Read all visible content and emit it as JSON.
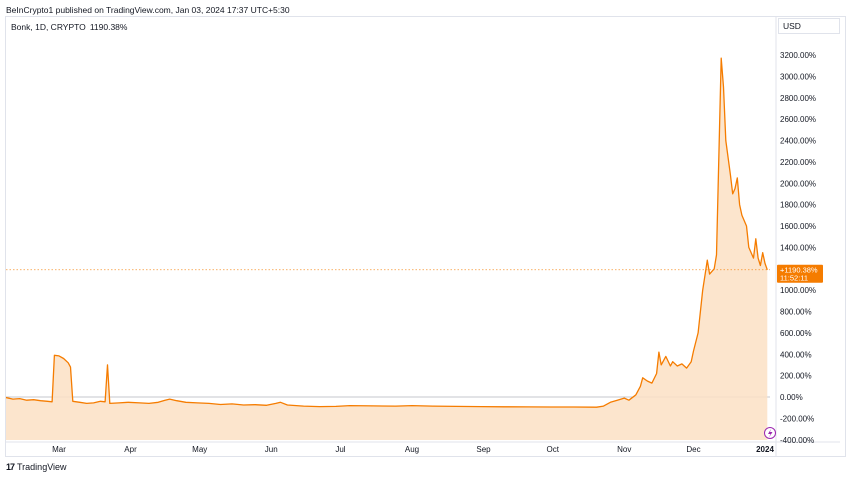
{
  "header": {
    "published": "BeInCrypto1 published on TradingView.com, Jan 03, 2024 17:37 UTC+5:30"
  },
  "legend": {
    "symbol": "Bonk, 1D, CRYPTO",
    "change": "1190.38%"
  },
  "price_scale": {
    "currency": "USD",
    "last_label": "+1190.38%",
    "countdown": "11:52:11"
  },
  "footer": {
    "brand": "TradingView",
    "logo_glyph": "17"
  },
  "colors": {
    "line": "#f57c00",
    "fill": "#fbe0c4",
    "label_bg": "#f57c00",
    "grid_zero": "#b2b5be"
  },
  "chart_data": {
    "type": "area",
    "title": "Bonk, 1D, CRYPTO",
    "ylabel": "",
    "y_unit": "%",
    "ylim": [
      -400,
      3400
    ],
    "y_ticks": [
      "-400.00%",
      "-200.00%",
      "0.00%",
      "200.00%",
      "400.00%",
      "600.00%",
      "800.00%",
      "1000.00%",
      "1200.00%",
      "1400.00%",
      "1600.00%",
      "1800.00%",
      "2000.00%",
      "2200.00%",
      "2400.00%",
      "2600.00%",
      "2800.00%",
      "3000.00%",
      "3200.00%"
    ],
    "x_ticks": [
      {
        "label": "Mar",
        "date": "2023-03-01"
      },
      {
        "label": "Apr",
        "date": "2023-04-01"
      },
      {
        "label": "May",
        "date": "2023-05-01"
      },
      {
        "label": "Jun",
        "date": "2023-06-01"
      },
      {
        "label": "Jul",
        "date": "2023-07-01"
      },
      {
        "label": "Aug",
        "date": "2023-08-01"
      },
      {
        "label": "Sep",
        "date": "2023-09-01"
      },
      {
        "label": "Oct",
        "date": "2023-10-01"
      },
      {
        "label": "Nov",
        "date": "2023-11-01"
      },
      {
        "label": "Dec",
        "date": "2023-12-01"
      },
      {
        "label": "2024",
        "date": "2024-01-01"
      }
    ],
    "last_value": 1190.38,
    "series": [
      {
        "points": [
          [
            "2023-02-03",
            0
          ],
          [
            "2023-02-06",
            -5
          ],
          [
            "2023-02-09",
            -20
          ],
          [
            "2023-02-12",
            -15
          ],
          [
            "2023-02-15",
            -30
          ],
          [
            "2023-02-18",
            -25
          ],
          [
            "2023-02-21",
            -35
          ],
          [
            "2023-02-24",
            -40
          ],
          [
            "2023-02-26",
            -45
          ],
          [
            "2023-02-27",
            390
          ],
          [
            "2023-03-01",
            385
          ],
          [
            "2023-03-03",
            360
          ],
          [
            "2023-03-05",
            320
          ],
          [
            "2023-03-06",
            280
          ],
          [
            "2023-03-07",
            -40
          ],
          [
            "2023-03-10",
            -50
          ],
          [
            "2023-03-13",
            -60
          ],
          [
            "2023-03-16",
            -55
          ],
          [
            "2023-03-19",
            -40
          ],
          [
            "2023-03-21",
            -45
          ],
          [
            "2023-03-22",
            300
          ],
          [
            "2023-03-23",
            -60
          ],
          [
            "2023-03-27",
            -55
          ],
          [
            "2023-03-31",
            -50
          ],
          [
            "2023-04-05",
            -55
          ],
          [
            "2023-04-09",
            -60
          ],
          [
            "2023-04-13",
            -50
          ],
          [
            "2023-04-16",
            -30
          ],
          [
            "2023-04-18",
            -20
          ],
          [
            "2023-04-21",
            -35
          ],
          [
            "2023-04-25",
            -50
          ],
          [
            "2023-04-30",
            -55
          ],
          [
            "2023-05-05",
            -60
          ],
          [
            "2023-05-10",
            -70
          ],
          [
            "2023-05-15",
            -65
          ],
          [
            "2023-05-20",
            -75
          ],
          [
            "2023-05-25",
            -72
          ],
          [
            "2023-05-30",
            -78
          ],
          [
            "2023-06-03",
            -60
          ],
          [
            "2023-06-05",
            -50
          ],
          [
            "2023-06-08",
            -75
          ],
          [
            "2023-06-15",
            -85
          ],
          [
            "2023-06-22",
            -90
          ],
          [
            "2023-06-29",
            -88
          ],
          [
            "2023-07-05",
            -80
          ],
          [
            "2023-07-15",
            -83
          ],
          [
            "2023-07-25",
            -85
          ],
          [
            "2023-08-01",
            -80
          ],
          [
            "2023-08-10",
            -85
          ],
          [
            "2023-08-20",
            -88
          ],
          [
            "2023-08-31",
            -90
          ],
          [
            "2023-09-10",
            -92
          ],
          [
            "2023-09-20",
            -93
          ],
          [
            "2023-09-30",
            -94
          ],
          [
            "2023-10-10",
            -94
          ],
          [
            "2023-10-20",
            -95
          ],
          [
            "2023-10-23",
            -85
          ],
          [
            "2023-10-26",
            -50
          ],
          [
            "2023-10-29",
            -30
          ],
          [
            "2023-11-01",
            -10
          ],
          [
            "2023-11-03",
            -30
          ],
          [
            "2023-11-06",
            20
          ],
          [
            "2023-11-08",
            100
          ],
          [
            "2023-11-09",
            180
          ],
          [
            "2023-11-11",
            150
          ],
          [
            "2023-11-13",
            130
          ],
          [
            "2023-11-15",
            220
          ],
          [
            "2023-11-16",
            420
          ],
          [
            "2023-11-17",
            300
          ],
          [
            "2023-11-19",
            380
          ],
          [
            "2023-11-21",
            290
          ],
          [
            "2023-11-22",
            330
          ],
          [
            "2023-11-24",
            290
          ],
          [
            "2023-11-26",
            310
          ],
          [
            "2023-11-28",
            270
          ],
          [
            "2023-11-30",
            330
          ],
          [
            "2023-12-01",
            430
          ],
          [
            "2023-12-03",
            600
          ],
          [
            "2023-12-05",
            1000
          ],
          [
            "2023-12-07",
            1280
          ],
          [
            "2023-12-08",
            1150
          ],
          [
            "2023-12-10",
            1200
          ],
          [
            "2023-12-11",
            1330
          ],
          [
            "2023-12-13",
            3170
          ],
          [
            "2023-12-14",
            2900
          ],
          [
            "2023-12-15",
            2400
          ],
          [
            "2023-12-17",
            2080
          ],
          [
            "2023-12-18",
            1900
          ],
          [
            "2023-12-19",
            1950
          ],
          [
            "2023-12-20",
            2050
          ],
          [
            "2023-12-21",
            1800
          ],
          [
            "2023-12-22",
            1700
          ],
          [
            "2023-12-24",
            1600
          ],
          [
            "2023-12-25",
            1400
          ],
          [
            "2023-12-27",
            1300
          ],
          [
            "2023-12-28",
            1480
          ],
          [
            "2023-12-29",
            1300
          ],
          [
            "2023-12-30",
            1230
          ],
          [
            "2023-12-31",
            1350
          ],
          [
            "2024-01-01",
            1250
          ],
          [
            "2024-01-02",
            1190.38
          ]
        ]
      }
    ]
  }
}
